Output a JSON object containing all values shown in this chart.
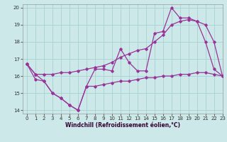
{
  "title": "",
  "xlabel": "Windchill (Refroidissement éolien,°C)",
  "ylabel": "",
  "x_hours": [
    0,
    1,
    2,
    3,
    4,
    5,
    6,
    7,
    8,
    9,
    10,
    11,
    12,
    13,
    14,
    15,
    16,
    17,
    18,
    19,
    20,
    21,
    22,
    23
  ],
  "line_main": [
    16.7,
    16.1,
    15.7,
    15.0,
    14.7,
    14.3,
    14.0,
    15.4,
    16.4,
    16.4,
    16.3,
    17.6,
    16.8,
    16.3,
    16.3,
    18.5,
    18.6,
    20.0,
    19.4,
    19.4,
    19.2,
    18.0,
    16.4,
    16.0
  ],
  "line_lower": [
    16.7,
    15.8,
    15.7,
    15.0,
    14.7,
    14.3,
    14.0,
    15.4,
    15.4,
    15.5,
    15.6,
    15.7,
    15.7,
    15.8,
    15.9,
    15.9,
    16.0,
    16.0,
    16.1,
    16.1,
    16.2,
    16.2,
    16.1,
    16.0
  ],
  "line_upper": [
    16.7,
    16.1,
    16.1,
    16.1,
    16.2,
    16.2,
    16.3,
    16.4,
    16.5,
    16.6,
    16.8,
    17.1,
    17.3,
    17.5,
    17.6,
    18.0,
    18.4,
    19.0,
    19.2,
    19.3,
    19.2,
    19.0,
    18.0,
    16.0
  ],
  "line_color": "#993399",
  "bg_color": "#cce8e8",
  "grid_color": "#aad4d4",
  "xlim": [
    -0.5,
    23
  ],
  "ylim": [
    13.8,
    20.2
  ],
  "yticks": [
    14,
    15,
    16,
    17,
    18,
    19,
    20
  ],
  "xticks": [
    0,
    1,
    2,
    3,
    4,
    5,
    6,
    7,
    8,
    9,
    10,
    11,
    12,
    13,
    14,
    15,
    16,
    17,
    18,
    19,
    20,
    21,
    22,
    23
  ]
}
